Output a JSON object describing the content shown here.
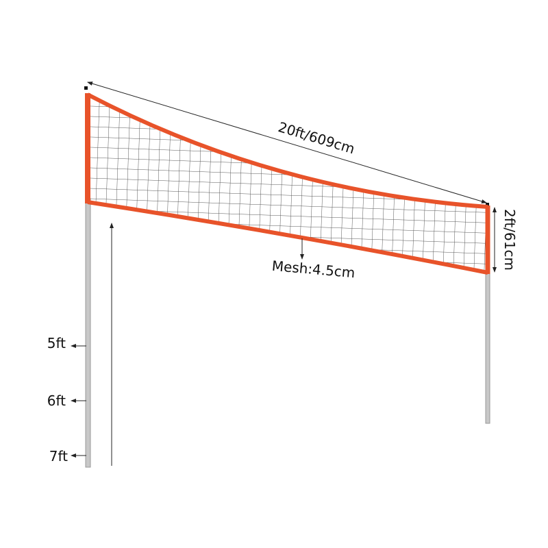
{
  "dimensions": {
    "length": "20ft/609cm",
    "height": "2ft/61cm",
    "mesh": "Mesh:4.5cm"
  },
  "pole_heights": [
    "5ft",
    "6ft",
    "7ft"
  ]
}
